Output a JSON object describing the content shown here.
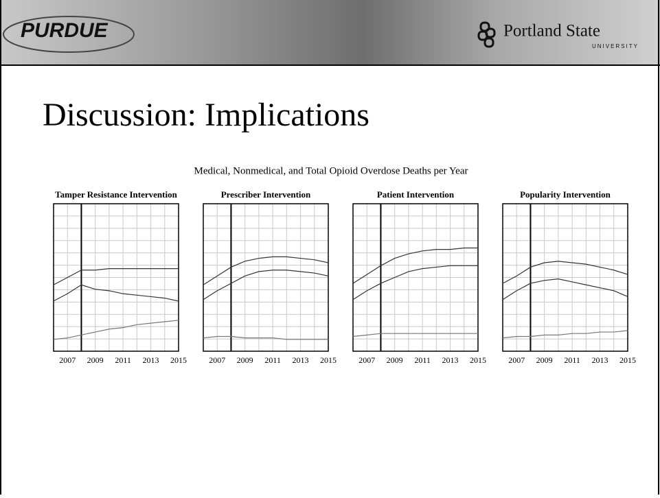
{
  "header": {
    "left_logo": "PURDUE",
    "right_logo": "Portland State",
    "right_logo_sub": "UNIVERSITY"
  },
  "slide_title": "Discussion: Implications",
  "figure_title": "Medical, Nonmedical, and Total Opioid Overdose Deaths per Year",
  "chart_data": [
    {
      "type": "line",
      "title": "Tamper Resistance Intervention",
      "x": [
        2006,
        2007,
        2008,
        2009,
        2010,
        2011,
        2012,
        2013,
        2014,
        2015
      ],
      "xlim": [
        2006,
        2015
      ],
      "xticks": [
        2007,
        2009,
        2011,
        2013,
        2015
      ],
      "ylim": [
        0,
        100
      ],
      "grid": true,
      "vline": 2008,
      "series": [
        {
          "color": "#333333",
          "values": [
            45,
            50,
            55,
            55,
            56,
            56,
            56,
            56,
            56,
            56
          ]
        },
        {
          "color": "#333333",
          "values": [
            34,
            39,
            45,
            42,
            41,
            39,
            38,
            37,
            36,
            34
          ]
        },
        {
          "color": "#777777",
          "values": [
            8,
            9,
            11,
            13,
            15,
            16,
            18,
            19,
            20,
            21
          ]
        }
      ]
    },
    {
      "type": "line",
      "title": "Prescriber Intervention",
      "x": [
        2006,
        2007,
        2008,
        2009,
        2010,
        2011,
        2012,
        2013,
        2014,
        2015
      ],
      "xlim": [
        2006,
        2015
      ],
      "xticks": [
        2007,
        2009,
        2011,
        2013,
        2015
      ],
      "ylim": [
        0,
        100
      ],
      "grid": true,
      "vline": 2008,
      "series": [
        {
          "color": "#333333",
          "values": [
            45,
            51,
            57,
            61,
            63,
            64,
            64,
            63,
            62,
            60
          ]
        },
        {
          "color": "#333333",
          "values": [
            35,
            41,
            46,
            51,
            54,
            55,
            55,
            54,
            53,
            51
          ]
        },
        {
          "color": "#777777",
          "values": [
            9,
            10,
            10,
            9,
            9,
            9,
            8,
            8,
            8,
            8
          ]
        }
      ]
    },
    {
      "type": "line",
      "title": "Patient Intervention",
      "x": [
        2006,
        2007,
        2008,
        2009,
        2010,
        2011,
        2012,
        2013,
        2014,
        2015
      ],
      "xlim": [
        2006,
        2015
      ],
      "xticks": [
        2007,
        2009,
        2011,
        2013,
        2015
      ],
      "ylim": [
        0,
        100
      ],
      "grid": true,
      "vline": 2008,
      "series": [
        {
          "color": "#333333",
          "values": [
            46,
            52,
            58,
            63,
            66,
            68,
            69,
            69,
            70,
            70
          ]
        },
        {
          "color": "#333333",
          "values": [
            35,
            41,
            46,
            50,
            54,
            56,
            57,
            58,
            58,
            58
          ]
        },
        {
          "color": "#777777",
          "values": [
            10,
            11,
            12,
            12,
            12,
            12,
            12,
            12,
            12,
            12
          ]
        }
      ]
    },
    {
      "type": "line",
      "title": "Popularity Intervention",
      "x": [
        2006,
        2007,
        2008,
        2009,
        2010,
        2011,
        2012,
        2013,
        2014,
        2015
      ],
      "xlim": [
        2006,
        2015
      ],
      "xticks": [
        2007,
        2009,
        2011,
        2013,
        2015
      ],
      "ylim": [
        0,
        100
      ],
      "grid": true,
      "vline": 2008,
      "series": [
        {
          "color": "#333333",
          "values": [
            46,
            51,
            57,
            60,
            61,
            60,
            59,
            57,
            55,
            52
          ]
        },
        {
          "color": "#333333",
          "values": [
            35,
            41,
            46,
            48,
            49,
            47,
            45,
            43,
            41,
            37
          ]
        },
        {
          "color": "#777777",
          "values": [
            9,
            10,
            10,
            11,
            11,
            12,
            12,
            13,
            13,
            14
          ]
        }
      ]
    }
  ]
}
